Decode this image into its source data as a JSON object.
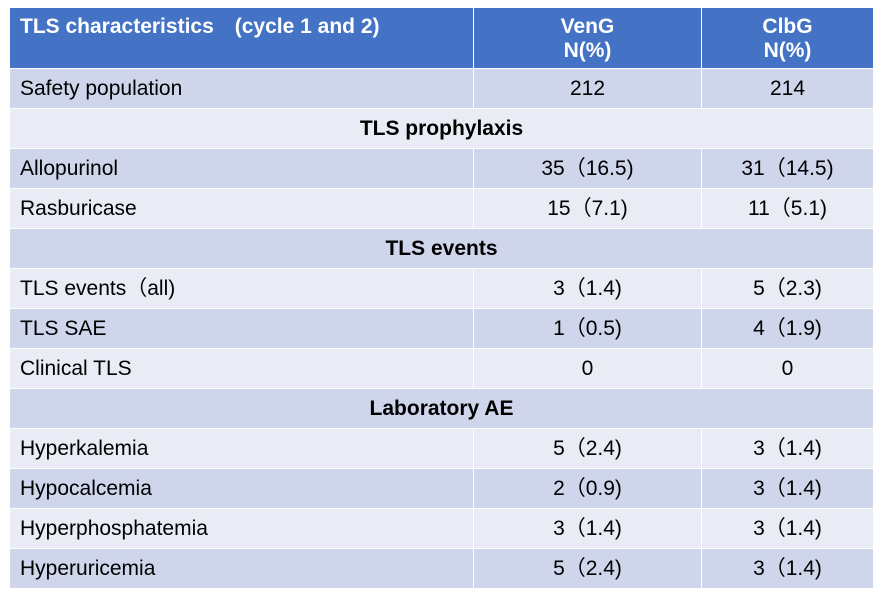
{
  "header": {
    "col1": "TLS characteristics　(cycle 1 and 2)",
    "col2_line1": "VenG",
    "col2_line2": "N(%)",
    "col3_line1": "ClbG",
    "col3_line2": "N(%)"
  },
  "rows": [
    {
      "type": "data",
      "label": "Safety population",
      "veng": "212",
      "clbg": "214"
    },
    {
      "type": "section",
      "label": "TLS prophylaxis"
    },
    {
      "type": "data",
      "label": "Allopurinol",
      "veng": "35（16.5)",
      "clbg": "31（14.5)"
    },
    {
      "type": "data",
      "label": "Rasburicase",
      "veng": "15（7.1)",
      "clbg": "11（5.1)"
    },
    {
      "type": "section",
      "label": "TLS events"
    },
    {
      "type": "data",
      "label": "TLS events（all)",
      "veng": "3（1.4)",
      "clbg": "5（2.3)"
    },
    {
      "type": "data",
      "label": "TLS SAE",
      "veng": "1（0.5)",
      "clbg": "4（1.9)"
    },
    {
      "type": "data",
      "label": "Clinical TLS",
      "veng": "0",
      "clbg": "0"
    },
    {
      "type": "section",
      "label": "Laboratory AE"
    },
    {
      "type": "data",
      "label": "Hyperkalemia",
      "veng": "5（2.4)",
      "clbg": "3（1.4)"
    },
    {
      "type": "data",
      "label": "Hypocalcemia",
      "veng": "2（0.9)",
      "clbg": "3（1.4)"
    },
    {
      "type": "data",
      "label": "Hyperphosphatemia",
      "veng": "3（1.4)",
      "clbg": "3（1.4)"
    },
    {
      "type": "data",
      "label": "Hyperuricemia",
      "veng": "5（2.4)",
      "clbg": "3（1.4)"
    }
  ],
  "colors": {
    "header_bg": "#4472c4",
    "row_dark": "#cfd5ea",
    "row_light": "#e9ebf5"
  }
}
